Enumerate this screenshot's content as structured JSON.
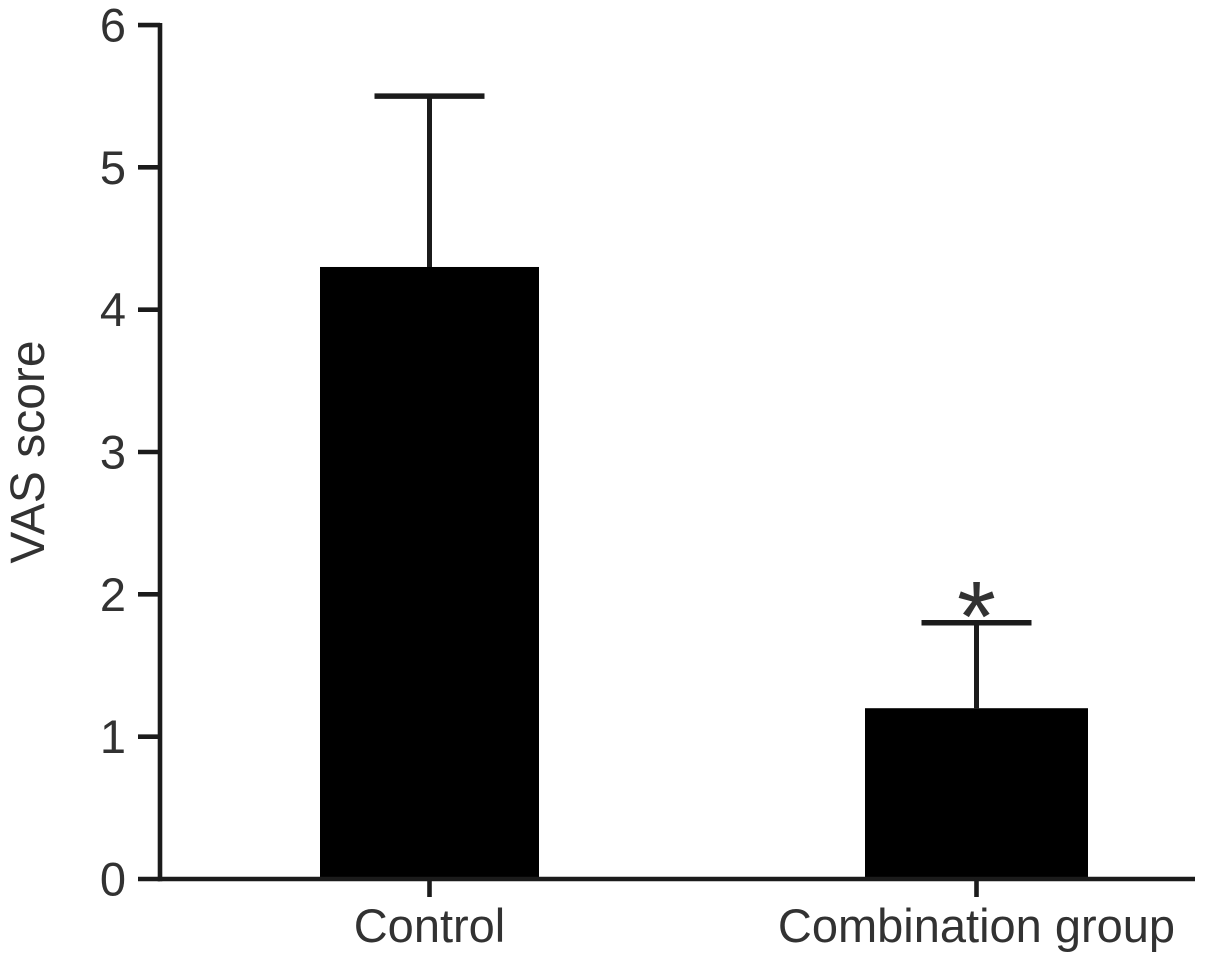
{
  "figure": {
    "background_color": "#ffffff",
    "bar_color": "#000000",
    "axis_color": "#1b1b1b",
    "text_color": "#323232"
  },
  "chart_data": {
    "type": "bar",
    "title": "",
    "xlabel": "",
    "ylabel": "VAS score",
    "categories": [
      "Control",
      "Combination group"
    ],
    "values": [
      4.3,
      1.2
    ],
    "errors_upper": [
      1.2,
      0.6
    ],
    "error_bar_style": "upper-only",
    "ylim": [
      0,
      6
    ],
    "ytick_labels": [
      "0",
      "1",
      "2",
      "3",
      "4",
      "5",
      "6"
    ],
    "grid": false,
    "legend": "none",
    "annotations": [
      {
        "text": "*",
        "category_index": 1,
        "position": "above-error-bar"
      }
    ]
  }
}
